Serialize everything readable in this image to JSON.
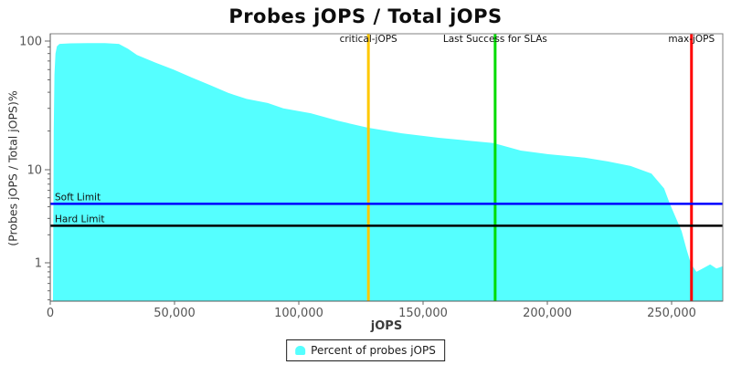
{
  "chart_data": {
    "type": "area",
    "title": "Probes jOPS / Total jOPS",
    "xlabel": "jOPS",
    "ylabel": "(Probes jOPS / Total jOPS)%",
    "legend_position": "bottom-center",
    "grid": false,
    "x_axis": {
      "min": 0,
      "max": 270600,
      "ticks": [
        {
          "v": 0,
          "label": "0"
        },
        {
          "v": 50000,
          "label": "50,000"
        },
        {
          "v": 100000,
          "label": "100,000"
        },
        {
          "v": 150000,
          "label": "150,000"
        },
        {
          "v": 200000,
          "label": "200,000"
        },
        {
          "v": 250000,
          "label": "250,000"
        }
      ]
    },
    "y_axis": {
      "scale": "log",
      "min": 0.38,
      "max": 110,
      "major_ticks": [
        {
          "v": 100,
          "label": "100"
        },
        {
          "v": 10,
          "label": "10"
        },
        {
          "v": 1,
          "label": "1"
        }
      ],
      "minor_ticks": [
        90,
        80,
        70,
        60,
        50,
        40,
        30,
        20,
        9,
        8,
        7,
        6,
        5,
        4,
        3,
        2,
        0.9,
        0.8,
        0.7,
        0.6,
        0.5,
        0.4
      ]
    },
    "series": [
      {
        "name": "Percent of probes jOPS",
        "color": "#55FFFF",
        "points": [
          [
            1100,
            0.4
          ],
          [
            1400,
            20
          ],
          [
            1700,
            55
          ],
          [
            2100,
            80
          ],
          [
            2700,
            91
          ],
          [
            3700,
            95
          ],
          [
            8000,
            96
          ],
          [
            15000,
            96.3
          ],
          [
            22000,
            96.3
          ],
          [
            27600,
            95
          ],
          [
            31300,
            87
          ],
          [
            34900,
            78
          ],
          [
            42300,
            68
          ],
          [
            49600,
            60
          ],
          [
            57000,
            52
          ],
          [
            64300,
            45.5
          ],
          [
            71700,
            39.5
          ],
          [
            79000,
            35.5
          ],
          [
            87500,
            33
          ],
          [
            93800,
            30
          ],
          [
            104800,
            27.5
          ],
          [
            115800,
            24
          ],
          [
            127900,
            21.2
          ],
          [
            141500,
            19.2
          ],
          [
            156300,
            17.7
          ],
          [
            178300,
            16.1
          ],
          [
            189300,
            14.1
          ],
          [
            200400,
            13.2
          ],
          [
            215000,
            12.4
          ],
          [
            224300,
            11.6
          ],
          [
            233500,
            10.7
          ],
          [
            241900,
            9.1
          ],
          [
            247000,
            6.3
          ],
          [
            249300,
            4.3
          ],
          [
            251800,
            3.0
          ],
          [
            254000,
            2.2
          ],
          [
            256000,
            1.4
          ],
          [
            257800,
            0.97
          ],
          [
            260000,
            0.8
          ],
          [
            262500,
            0.87
          ],
          [
            265500,
            0.96
          ],
          [
            268000,
            0.87
          ],
          [
            270600,
            0.92
          ]
        ]
      }
    ],
    "markers": {
      "vertical": [
        {
          "label": "critical-jOPS",
          "x": 128000,
          "color": "#FFC800"
        },
        {
          "label": "Last Success for SLAs",
          "x": 179000,
          "color": "#00DC00"
        },
        {
          "label": "max-jOPS",
          "x": 258000,
          "color": "#FF0000"
        }
      ],
      "horizontal": [
        {
          "label": "Soft Limit",
          "y": 4.3,
          "color": "#0000FF"
        },
        {
          "label": "Hard Limit",
          "y": 2.5,
          "color": "#000000"
        }
      ]
    }
  },
  "legend": {
    "label": "Percent of probes jOPS"
  },
  "colors": {
    "plot_border": "#808080",
    "axis_line": "#555555",
    "tick": "#666666",
    "tick_label": "#555555",
    "marker_label": "#111111"
  }
}
